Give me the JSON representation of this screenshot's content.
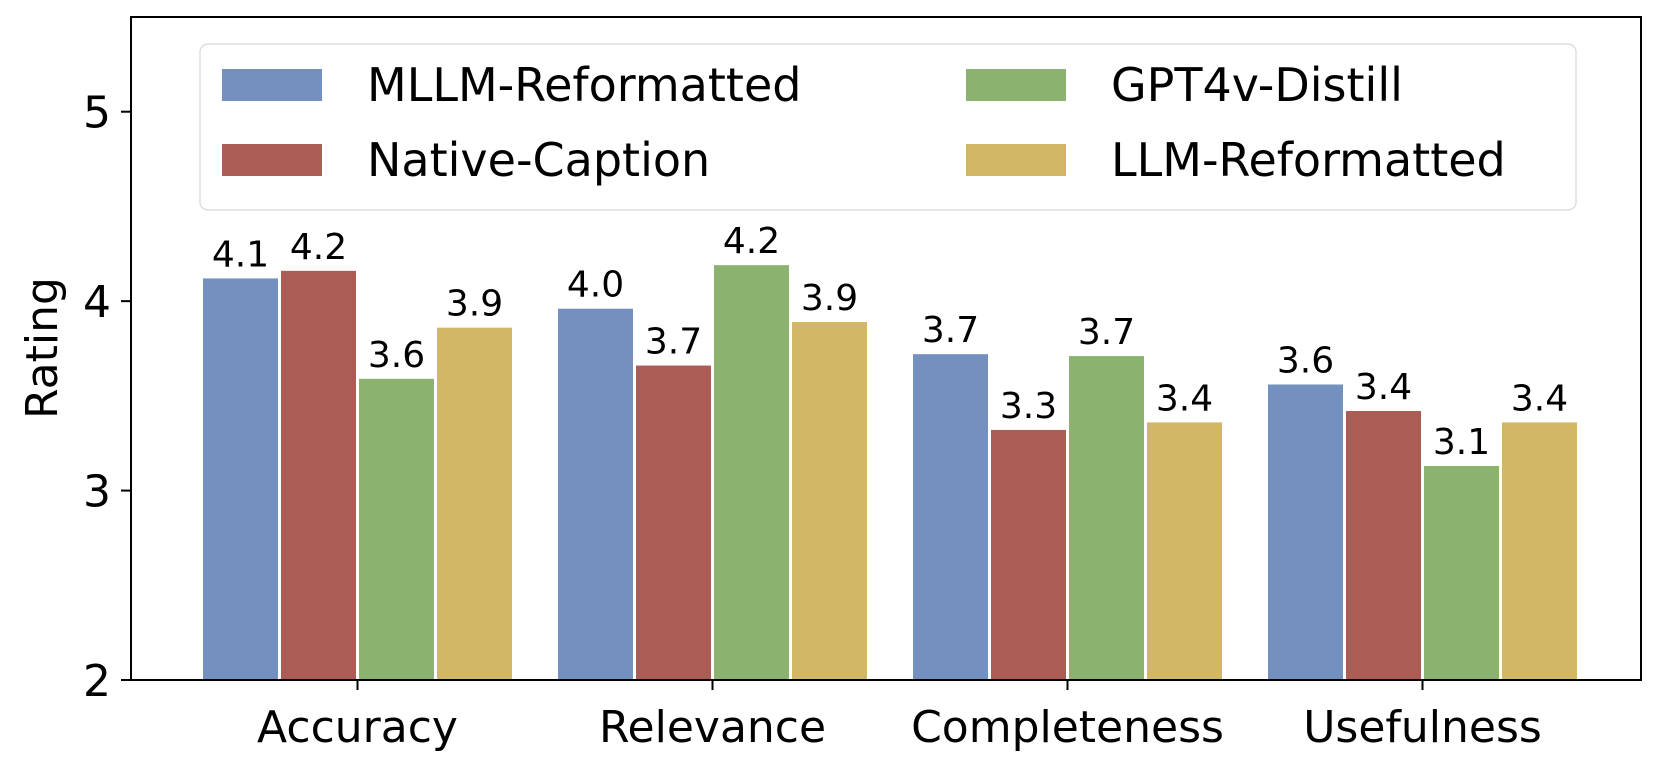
{
  "chart_data": {
    "type": "bar",
    "title": "",
    "xlabel": "",
    "ylabel": "Rating",
    "ylim": [
      2,
      5.5
    ],
    "yticks": [
      2,
      3,
      4,
      5
    ],
    "categories": [
      "Accuracy",
      "Relevance",
      "Completeness",
      "Usefulness"
    ],
    "legend_position": "top",
    "grid": false,
    "series": [
      {
        "name": "MLLM-Reformatted",
        "color": "#7490bf",
        "values": [
          4.12,
          3.96,
          3.72,
          3.56
        ],
        "labels": [
          "4.1",
          "4.0",
          "3.7",
          "3.6"
        ]
      },
      {
        "name": "Native-Caption",
        "color": "#ab5c55",
        "values": [
          4.16,
          3.66,
          3.32,
          3.42
        ],
        "labels": [
          "4.2",
          "3.7",
          "3.3",
          "3.4"
        ]
      },
      {
        "name": "GPT4v-Distill",
        "color": "#8cb26f",
        "values": [
          3.59,
          4.19,
          3.71,
          3.13
        ],
        "labels": [
          "3.6",
          "4.2",
          "3.7",
          "3.1"
        ]
      },
      {
        "name": "LLM-Reformatted",
        "color": "#d2b767",
        "values": [
          3.86,
          3.89,
          3.36,
          3.36
        ],
        "labels": [
          "3.9",
          "3.9",
          "3.4",
          "3.4"
        ]
      }
    ]
  }
}
